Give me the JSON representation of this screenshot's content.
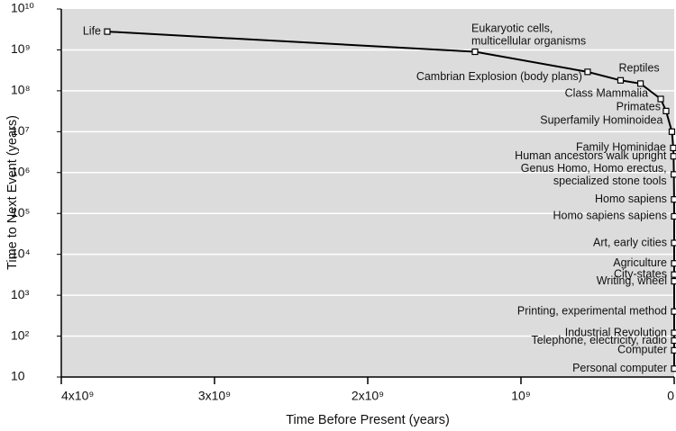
{
  "chart_data": {
    "type": "line",
    "x_label": "Time Before Present (years)",
    "y_label": "Time to Next Event (years)",
    "categories": [
      "Life",
      "Eukaryotic cells,\nmulticellular organisms",
      "Cambrian Explosion (body plans)",
      "Reptiles",
      null,
      "Class Mammalia",
      "Primates",
      "Superfamily Hominoidea",
      "Family Hominidae",
      "Human ancestors walk upright",
      "Genus Homo, Homo erectus,\nspecialized stone tools",
      "Homo sapiens",
      "Homo sapiens sapiens",
      "Art, early cities",
      "Agriculture",
      "City-states",
      "Writing, wheel",
      "Printing, experimental method",
      "Industrial Revolution",
      "Telephone,  electricity, radio",
      "Computer",
      "Personal computer"
    ],
    "x": [
      3700000000,
      1300000000,
      565000000,
      350000000,
      220000000,
      88000000,
      53000000,
      15000000,
      6000000,
      4000000,
      2000000,
      500000,
      150000,
      40000,
      10000,
      5000,
      4000,
      500,
      200,
      120,
      60,
      25
    ],
    "values": [
      2800000000,
      900000000,
      290000000,
      180000000,
      150000000,
      63000000,
      32000000,
      10000000,
      4000000,
      2500000,
      900000,
      220000,
      85000,
      19000,
      6000,
      3200,
      2200,
      400,
      120,
      78,
      45,
      16
    ],
    "color": "#000000",
    "xlim": [
      4000000000,
      0
    ],
    "xticks": [
      {
        "value": 4000000000,
        "label": "4x10⁹"
      },
      {
        "value": 3000000000,
        "label": "3x10⁹"
      },
      {
        "value": 2000000000,
        "label": "2x10⁹"
      },
      {
        "value": 1000000000,
        "label": "10⁹"
      },
      0
    ],
    "ylim": [
      10,
      10000000000
    ],
    "yticks": [
      10,
      {
        "value": 100,
        "label": "10²"
      },
      {
        "value": 1000,
        "label": "10³"
      },
      {
        "value": 10000,
        "label": "10⁴"
      },
      {
        "value": 100000,
        "label": "10⁵"
      },
      {
        "value": 1000000,
        "label": "10⁶"
      },
      {
        "value": 10000000,
        "label": "10⁷"
      },
      {
        "value": 100000000,
        "label": "10⁸"
      },
      {
        "value": 1000000000,
        "label": "10⁹"
      },
      {
        "value": 10000000000,
        "label": "10¹⁰"
      }
    ],
    "log_y": true,
    "grid": true
  }
}
